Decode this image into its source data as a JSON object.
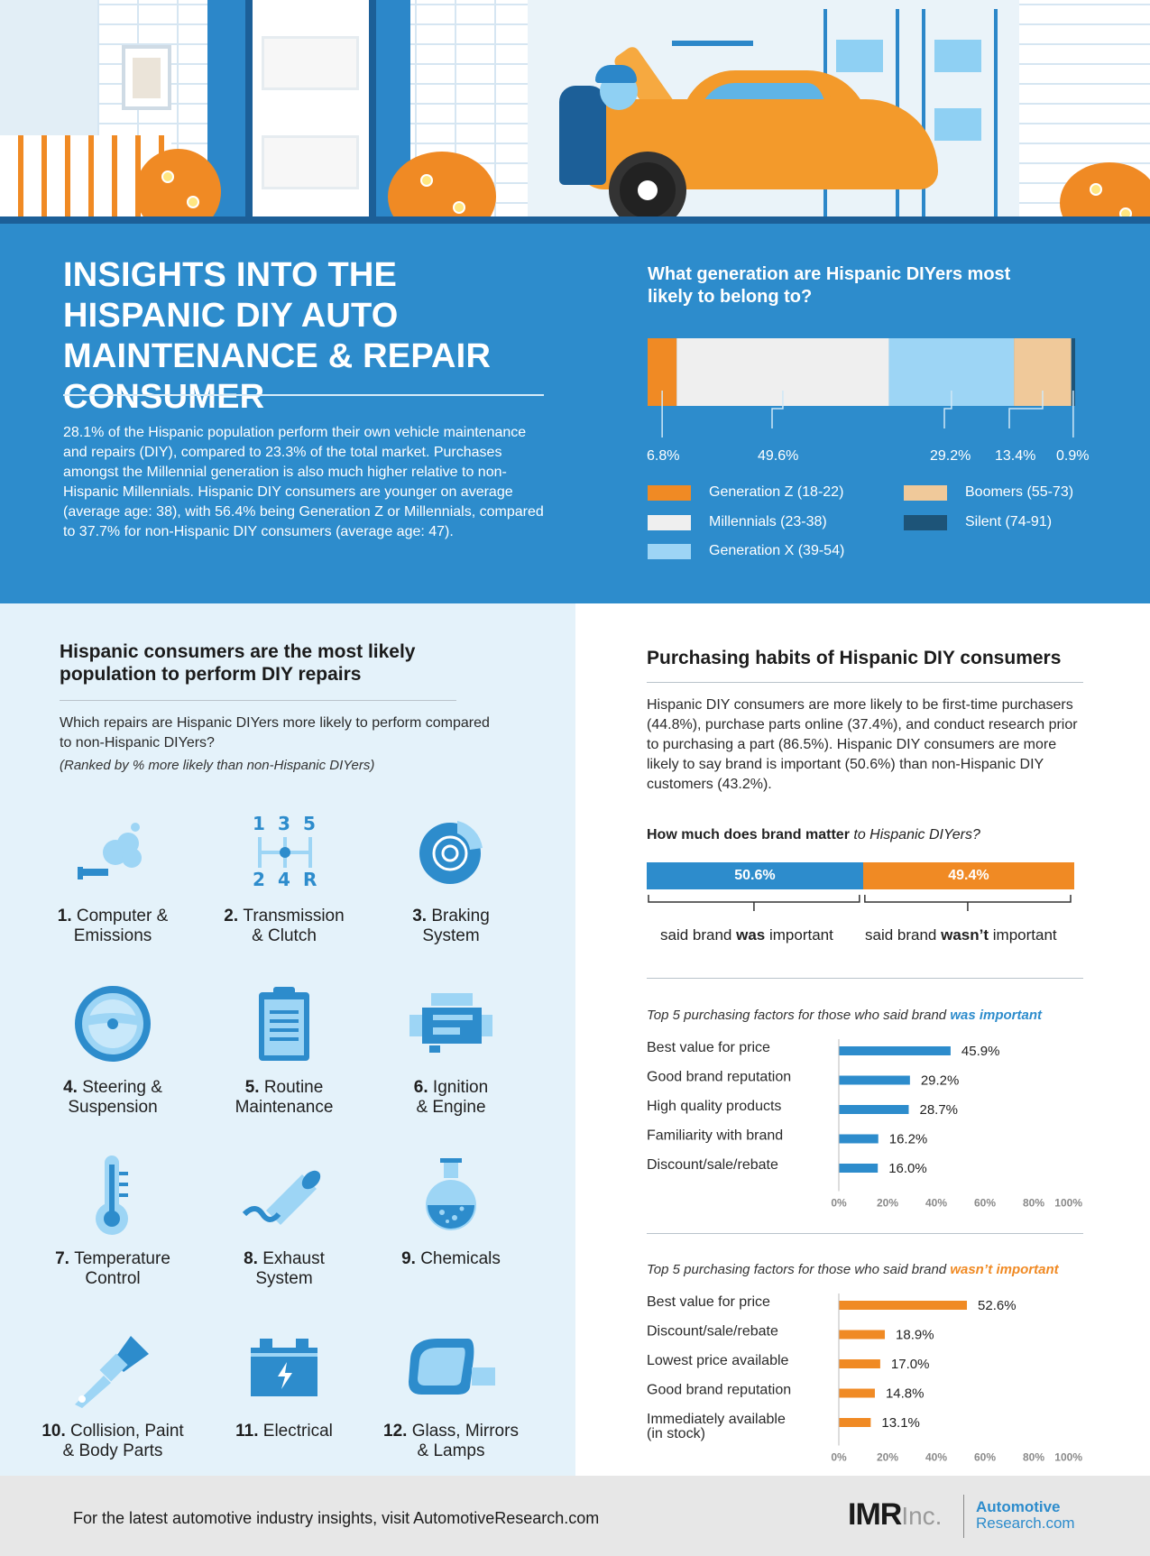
{
  "header": {
    "title": "INSIGHTS INTO THE HISPANIC DIY AUTO MAINTENANCE & REPAIR CONSUMER",
    "intro": "28.1% of the Hispanic population perform their own vehicle maintenance and repairs (DIY), compared to 23.3% of the total market. Purchases amongst the Millennial generation is also much higher relative to non-Hispanic Millennials. Hispanic DIY consumers are younger on average (average age: 38), with 56.4% being Generation Z or Millennials, compared to 37.7% for non-Hispanic DIY consumers (average age: 47)."
  },
  "colors": {
    "blue": "#2d8ccc",
    "orange": "#f08a24",
    "light_blue": "#9dd5f5",
    "beige": "#f0c99a",
    "white_segment": "#efefef",
    "navy": "#1d5478"
  },
  "generation": {
    "question": "What generation are Hispanic DIYers most likely to belong to?",
    "legend": [
      {
        "label": "Generation Z (18-22)",
        "color": "#f08a24"
      },
      {
        "label": "Millennials (23-38)",
        "color": "#efefef"
      },
      {
        "label": "Generation X (39-54)",
        "color": "#9dd5f5"
      },
      {
        "label": "Boomers (55-73)",
        "color": "#f0c99a"
      },
      {
        "label": "Silent (74-91)",
        "color": "#1d5478"
      }
    ]
  },
  "repairs": {
    "heading": "Hispanic consumers are the most likely population to perform DIY repairs",
    "question": "Which repairs are Hispanic DIYers more likely to perform compared to non-Hispanic DIYers?",
    "note": "(Ranked by % more likely than non-Hispanic DIYers)",
    "items": [
      {
        "num": "1.",
        "line1": "Computer &",
        "line2": "Emissions",
        "icon": "computer-emissions-icon"
      },
      {
        "num": "2.",
        "line1": "Transmission",
        "line2": "& Clutch",
        "icon": "gear-shift-icon"
      },
      {
        "num": "3.",
        "line1": "Braking",
        "line2": "System",
        "icon": "brake-disc-icon"
      },
      {
        "num": "4.",
        "line1": "Steering &",
        "line2": "Suspension",
        "icon": "steering-wheel-icon"
      },
      {
        "num": "5.",
        "line1": "Routine",
        "line2": "Maintenance",
        "icon": "clipboard-icon"
      },
      {
        "num": "6.",
        "line1": "Ignition",
        "line2": "& Engine",
        "icon": "engine-icon"
      },
      {
        "num": "7.",
        "line1": "Temperature",
        "line2": "Control",
        "icon": "thermometer-icon"
      },
      {
        "num": "8.",
        "line1": "Exhaust",
        "line2": "System",
        "icon": "exhaust-pipe-icon"
      },
      {
        "num": "9.",
        "line1": "Chemicals",
        "line2": "",
        "icon": "flask-icon"
      },
      {
        "num": "10.",
        "line1": "Collision, Paint",
        "line2": "& Body Parts",
        "icon": "paint-brush-icon"
      },
      {
        "num": "11.",
        "line1": "Electrical",
        "line2": "",
        "icon": "battery-icon"
      },
      {
        "num": "12.",
        "line1": "Glass, Mirrors",
        "line2": "& Lamps",
        "icon": "side-mirror-icon"
      }
    ]
  },
  "purchasing": {
    "heading": "Purchasing habits of Hispanic DIY consumers",
    "paragraph": "Hispanic DIY consumers are more likely to be first-time purchasers (44.8%), purchase parts online (37.4%), and conduct research prior to purchasing a part (86.5%). Hispanic DIY consumers are more likely to say brand is important (50.6%) than non-Hispanic DIY customers (43.2%).",
    "brand_q_bold": "How much does brand matter",
    "brand_q_rest": " to Hispanic DIYers?",
    "was_title_pre": "Top 5 purchasing factors for those who said brand ",
    "was_title_em": "was important",
    "wasnt_title_pre": "Top 5 purchasing factors for those who said brand ",
    "wasnt_title_em": "wasn’t important",
    "brand_lbl_was_pre": "said brand ",
    "brand_lbl_was_em": "was",
    "brand_lbl_was_post": " important",
    "brand_lbl_wasnt_pre": "said brand ",
    "brand_lbl_wasnt_em": "wasn’t",
    "brand_lbl_wasnt_post": " important"
  },
  "footer": {
    "text": "For the latest automotive industry insights, visit AutomotiveResearch.com",
    "logo_imr": "IMR",
    "logo_inc": "Inc.",
    "logo_ar1": "Automotive",
    "logo_ar2": "Research.com"
  },
  "chart_data": [
    {
      "type": "bar",
      "orientation": "stacked-horizontal",
      "title": "What generation are Hispanic DIYers most likely to belong to?",
      "categories": [
        "Generation Z (18-22)",
        "Millennials (23-38)",
        "Generation X (39-54)",
        "Boomers (55-73)",
        "Silent (74-91)"
      ],
      "values": [
        6.8,
        49.6,
        29.2,
        13.4,
        0.9
      ],
      "data_labels": [
        "6.8%",
        "49.6%",
        "29.2%",
        "13.4%",
        "0.9%"
      ],
      "colors": [
        "#f08a24",
        "#efefef",
        "#9dd5f5",
        "#f0c99a",
        "#1d5478"
      ],
      "legend": "bottom"
    },
    {
      "type": "bar",
      "orientation": "stacked-horizontal",
      "title": "How much does brand matter to Hispanic DIYers?",
      "categories": [
        "said brand was important",
        "said brand wasn’t important"
      ],
      "values": [
        50.6,
        49.4
      ],
      "data_labels": [
        "50.6%",
        "49.4%"
      ],
      "colors": [
        "#2d8ccc",
        "#f08a24"
      ]
    },
    {
      "type": "bar",
      "orientation": "horizontal",
      "title": "Top 5 purchasing factors for those who said brand was important",
      "categories": [
        "Best value for price",
        "Good brand reputation",
        "High quality products",
        "Familiarity with brand",
        "Discount/sale/rebate"
      ],
      "values": [
        45.9,
        29.2,
        28.7,
        16.2,
        16.0
      ],
      "data_labels": [
        "45.9%",
        "29.2%",
        "28.7%",
        "16.2%",
        "16.0%"
      ],
      "color": "#2d8ccc",
      "xlim": [
        0,
        100
      ],
      "xticks": [
        "0%",
        "20%",
        "40%",
        "60%",
        "80%",
        "100%"
      ]
    },
    {
      "type": "bar",
      "orientation": "horizontal",
      "title": "Top 5 purchasing factors for those who said brand wasn’t important",
      "categories": [
        "Best value for price",
        "Discount/sale/rebate",
        "Lowest price available",
        "Good brand reputation",
        "Immediately available\n(in stock)"
      ],
      "values": [
        52.6,
        18.9,
        17.0,
        14.8,
        13.1
      ],
      "data_labels": [
        "52.6%",
        "18.9%",
        "17.0%",
        "14.8%",
        "13.1%"
      ],
      "color": "#f08a24",
      "xlim": [
        0,
        100
      ],
      "xticks": [
        "0%",
        "20%",
        "40%",
        "60%",
        "80%",
        "100%"
      ]
    }
  ]
}
